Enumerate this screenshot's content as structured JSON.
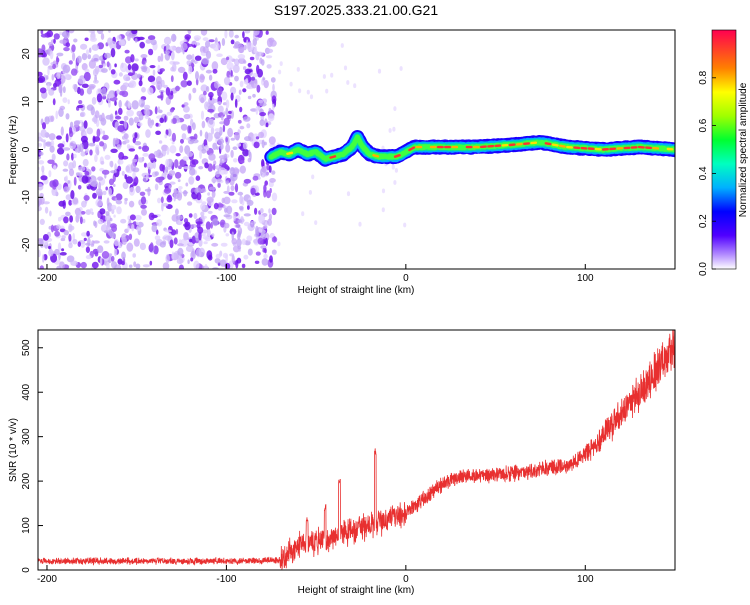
{
  "title": "S197.2025.333.21.00.G21",
  "chart_data": [
    {
      "type": "heatmap",
      "xlabel": "Height of straight line (km)",
      "ylabel": "Frequency (Hz)",
      "xlim": [
        -205,
        150
      ],
      "ylim": [
        -25,
        25
      ],
      "xticks": [
        -200,
        -100,
        0,
        100
      ],
      "yticks": [
        -20,
        -10,
        0,
        10,
        20
      ],
      "colorbar": {
        "label": "Normalized spectral amplitude",
        "range": [
          0,
          1
        ],
        "ticks": [
          0.0,
          0.2,
          0.4,
          0.6,
          0.8
        ]
      },
      "noise_region_x": [
        -205,
        -73
      ],
      "ridge": [
        {
          "x": -75,
          "f": -1.5
        },
        {
          "x": -70,
          "f": -0.5
        },
        {
          "x": -65,
          "f": -1.0
        },
        {
          "x": -60,
          "f": 0.0
        },
        {
          "x": -55,
          "f": -1.0
        },
        {
          "x": -50,
          "f": -0.5
        },
        {
          "x": -45,
          "f": -2.0
        },
        {
          "x": -40,
          "f": -1.5
        },
        {
          "x": -35,
          "f": -1.0
        },
        {
          "x": -30,
          "f": 0.5
        },
        {
          "x": -27,
          "f": 2.5
        },
        {
          "x": -24,
          "f": 0.5
        },
        {
          "x": -20,
          "f": -1.0
        },
        {
          "x": -15,
          "f": -1.5
        },
        {
          "x": -5,
          "f": -1.5
        },
        {
          "x": 0,
          "f": -0.5
        },
        {
          "x": 5,
          "f": 0.5
        },
        {
          "x": 20,
          "f": 0.5
        },
        {
          "x": 40,
          "f": 0.5
        },
        {
          "x": 60,
          "f": 1.0
        },
        {
          "x": 75,
          "f": 1.5
        },
        {
          "x": 90,
          "f": 0.5
        },
        {
          "x": 110,
          "f": 0.0
        },
        {
          "x": 130,
          "f": 0.5
        },
        {
          "x": 150,
          "f": 0.0
        }
      ]
    },
    {
      "type": "line",
      "xlabel": "Height of straight line (km)",
      "ylabel": "SNR (10 * v/v)",
      "xlim": [
        -205,
        150
      ],
      "ylim": [
        0,
        540
      ],
      "xticks": [
        -200,
        -100,
        0,
        100
      ],
      "yticks": [
        0,
        100,
        200,
        300,
        400,
        500
      ],
      "color": "#e83030",
      "trend": [
        {
          "x": -205,
          "y": 20
        },
        {
          "x": -100,
          "y": 20
        },
        {
          "x": -70,
          "y": 22
        },
        {
          "x": -60,
          "y": 55
        },
        {
          "x": -40,
          "y": 75
        },
        {
          "x": -20,
          "y": 100
        },
        {
          "x": 0,
          "y": 125
        },
        {
          "x": 10,
          "y": 160
        },
        {
          "x": 20,
          "y": 195
        },
        {
          "x": 30,
          "y": 210
        },
        {
          "x": 50,
          "y": 215
        },
        {
          "x": 70,
          "y": 222
        },
        {
          "x": 90,
          "y": 235
        },
        {
          "x": 100,
          "y": 260
        },
        {
          "x": 110,
          "y": 300
        },
        {
          "x": 120,
          "y": 350
        },
        {
          "x": 130,
          "y": 400
        },
        {
          "x": 140,
          "y": 450
        },
        {
          "x": 150,
          "y": 500
        }
      ],
      "spikes": [
        {
          "x": -37,
          "y": 215
        },
        {
          "x": -17,
          "y": 275
        },
        {
          "x": -55,
          "y": 120
        },
        {
          "x": -45,
          "y": 150
        }
      ]
    }
  ]
}
